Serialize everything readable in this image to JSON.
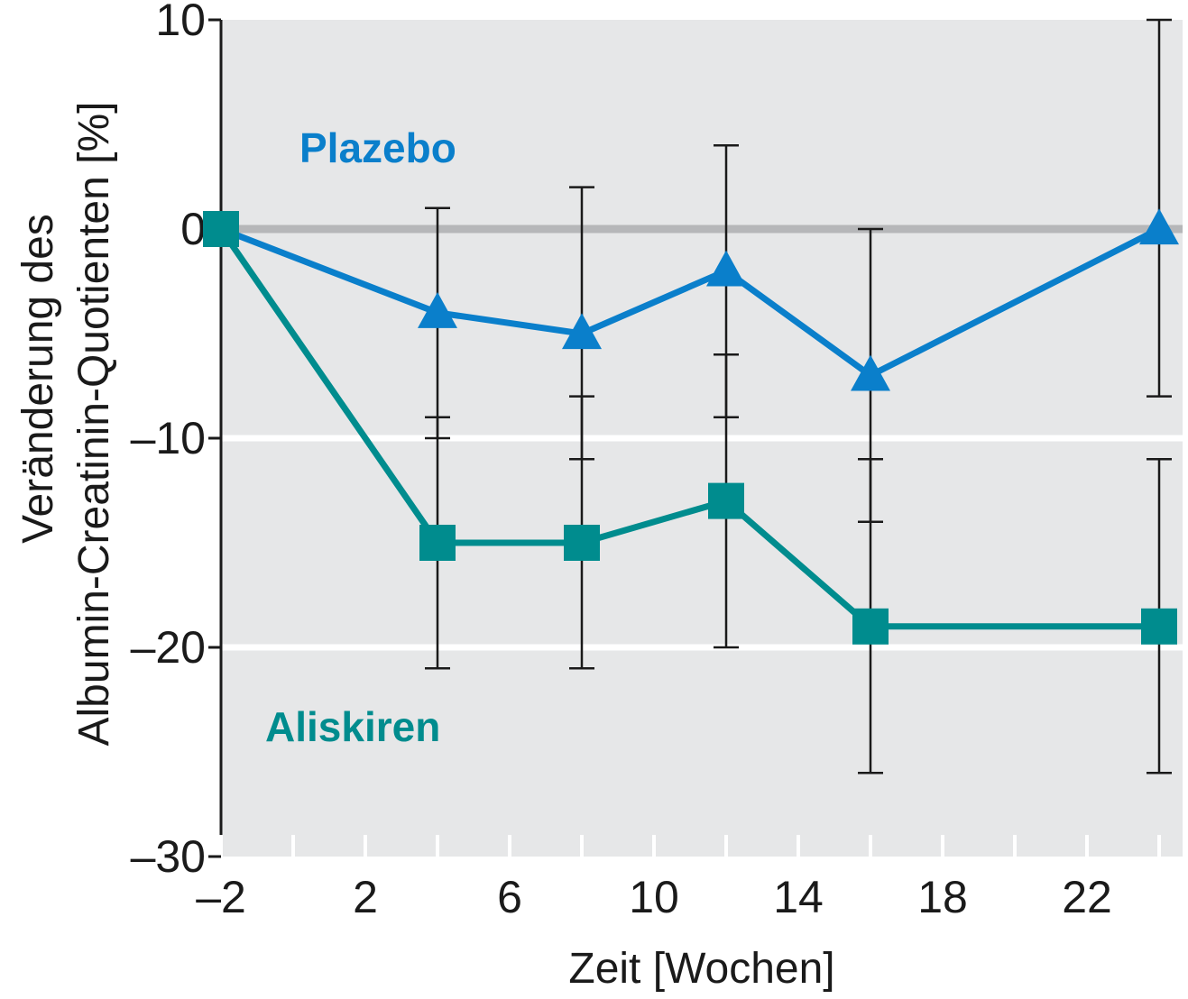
{
  "chart_data": {
    "type": "line",
    "title": "",
    "xlabel": "Zeit [Wochen]",
    "ylabel_line1": "Veränderung des",
    "ylabel_line2": "Albumin-Creatinin-Quotienten [%]",
    "xlim": [
      -2,
      25
    ],
    "ylim": [
      -30,
      10
    ],
    "x_ticks": [
      -2,
      2,
      6,
      10,
      14,
      18,
      22
    ],
    "x_tick_labels": [
      "–2",
      "2",
      "6",
      "10",
      "14",
      "18",
      "22"
    ],
    "x_minor_ticks": [
      0,
      4,
      8,
      12,
      16,
      20,
      24
    ],
    "y_ticks": [
      -30,
      -20,
      -10,
      0,
      10
    ],
    "y_tick_labels": [
      "–30",
      "–20",
      "–10",
      "0",
      "10"
    ],
    "grid": true,
    "series": [
      {
        "name": "Plazebo",
        "color": "#0a7fcb",
        "marker": "triangle",
        "x": [
          -2,
          4,
          8,
          12,
          16,
          24
        ],
        "y": [
          0,
          -4,
          -5,
          -2,
          -7,
          0
        ],
        "err_low": [
          null,
          -10,
          -11,
          -9,
          -14,
          -8
        ],
        "err_high": [
          null,
          1,
          2,
          4,
          0,
          10
        ]
      },
      {
        "name": "Aliskiren",
        "color": "#008c8e",
        "marker": "square",
        "x": [
          -2,
          4,
          8,
          12,
          16,
          24
        ],
        "y": [
          0,
          -15,
          -15,
          -13,
          -19,
          -19
        ],
        "err_low": [
          null,
          -21,
          -21,
          -20,
          -26,
          -26
        ],
        "err_high": [
          null,
          -9,
          -8,
          -6,
          -11,
          -11
        ]
      }
    ]
  }
}
